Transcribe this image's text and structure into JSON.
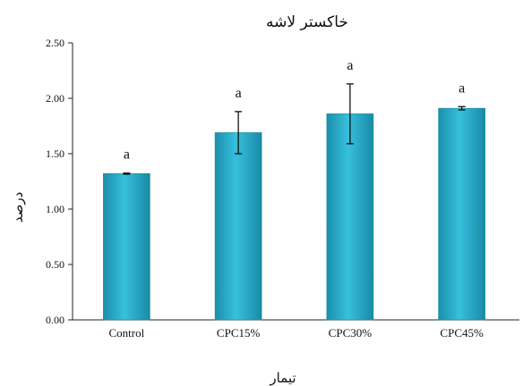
{
  "chart_data": {
    "type": "bar",
    "title": "خاکستر لاشه",
    "ylabel": "درصد",
    "xlabel": "تیمار",
    "categories": [
      "Control",
      "CPC15%",
      "CPC30%",
      "CPC45%"
    ],
    "values": [
      1.32,
      1.69,
      1.86,
      1.91
    ],
    "error": [
      0.005,
      0.19,
      0.27,
      0.015
    ],
    "significance": [
      "a",
      "a",
      "a",
      "a"
    ],
    "ylim": [
      0,
      2.5
    ],
    "yticks": [
      0,
      0.5,
      1.0,
      1.5,
      2.0,
      2.5
    ],
    "ytick_labels": [
      "0.00",
      "0.50",
      "1.00",
      "1.50",
      "2.00",
      "2.50"
    ],
    "grid": false,
    "bar_color": "#2fb3cf"
  }
}
